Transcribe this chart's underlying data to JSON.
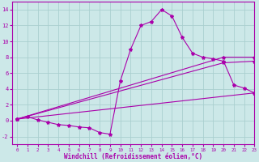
{
  "xlabel": "Windchill (Refroidissement éolien,°C)",
  "bg_color": "#cce8e8",
  "grid_color": "#aacfcf",
  "line_color": "#aa00aa",
  "line1_x": [
    0,
    1,
    2,
    3,
    4,
    5,
    6,
    7,
    8,
    9,
    10,
    11,
    12,
    13,
    14,
    15,
    16,
    17,
    18,
    19,
    20,
    21,
    22,
    23
  ],
  "line1_y": [
    0.2,
    0.5,
    0.1,
    -0.2,
    -0.5,
    -0.6,
    -0.8,
    -0.9,
    -1.5,
    -1.7,
    5.0,
    9.0,
    12.0,
    12.5,
    14.0,
    13.2,
    10.5,
    8.5,
    8.0,
    7.8,
    7.5,
    4.5,
    4.1,
    3.5
  ],
  "line2_x": [
    0,
    20,
    23
  ],
  "line2_y": [
    0.2,
    8.0,
    8.0
  ],
  "line3_x": [
    0,
    20,
    23
  ],
  "line3_y": [
    0.2,
    7.3,
    7.5
  ],
  "line4_x": [
    0,
    23
  ],
  "line4_y": [
    0.2,
    3.5
  ],
  "xlim": [
    -0.5,
    23
  ],
  "ylim": [
    -3,
    15
  ],
  "yticks": [
    -2,
    0,
    2,
    4,
    6,
    8,
    10,
    12,
    14
  ],
  "xticks": [
    0,
    1,
    2,
    3,
    4,
    5,
    6,
    7,
    8,
    9,
    10,
    11,
    12,
    13,
    14,
    15,
    16,
    17,
    18,
    19,
    20,
    21,
    22,
    23
  ],
  "figwidth": 3.2,
  "figheight": 2.0,
  "dpi": 100
}
